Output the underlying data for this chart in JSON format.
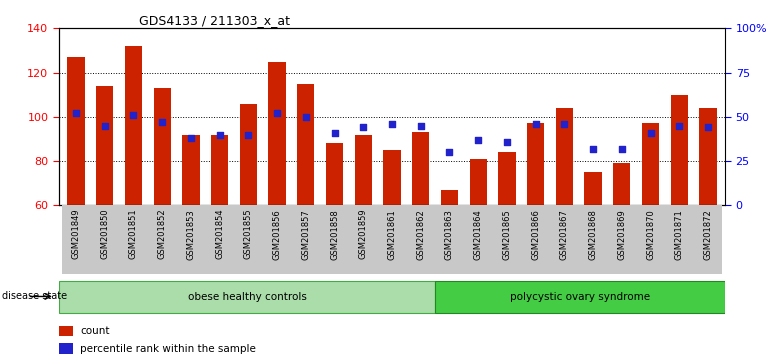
{
  "title": "GDS4133 / 211303_x_at",
  "samples": [
    "GSM201849",
    "GSM201850",
    "GSM201851",
    "GSM201852",
    "GSM201853",
    "GSM201854",
    "GSM201855",
    "GSM201856",
    "GSM201857",
    "GSM201858",
    "GSM201859",
    "GSM201861",
    "GSM201862",
    "GSM201863",
    "GSM201864",
    "GSM201865",
    "GSM201866",
    "GSM201867",
    "GSM201868",
    "GSM201869",
    "GSM201870",
    "GSM201871",
    "GSM201872"
  ],
  "counts": [
    127,
    114,
    132,
    113,
    92,
    92,
    106,
    125,
    115,
    88,
    92,
    85,
    93,
    67,
    81,
    84,
    97,
    104,
    75,
    79,
    97,
    110,
    104
  ],
  "percentile_ranks": [
    52,
    45,
    51,
    47,
    38,
    40,
    40,
    52,
    50,
    41,
    44,
    46,
    45,
    30,
    37,
    36,
    46,
    46,
    32,
    32,
    41,
    45,
    44
  ],
  "groups": {
    "obese healthy controls": [
      0,
      13
    ],
    "polycystic ovary syndrome": [
      13,
      23
    ]
  },
  "group_colors": {
    "obese healthy controls": "#aaddaa",
    "polycystic ovary syndrome": "#44cc44"
  },
  "bar_color": "#cc2200",
  "dot_color": "#2222cc",
  "ylim_left": [
    60,
    140
  ],
  "ylim_right": [
    0,
    100
  ],
  "left_ticks": [
    60,
    80,
    100,
    120,
    140
  ],
  "right_ticks": [
    0,
    25,
    50,
    75,
    100
  ],
  "right_tick_labels": [
    "0",
    "25",
    "50",
    "75",
    "100%"
  ],
  "label_count": "count",
  "label_percentile": "percentile rank within the sample",
  "disease_state_label": "disease state"
}
